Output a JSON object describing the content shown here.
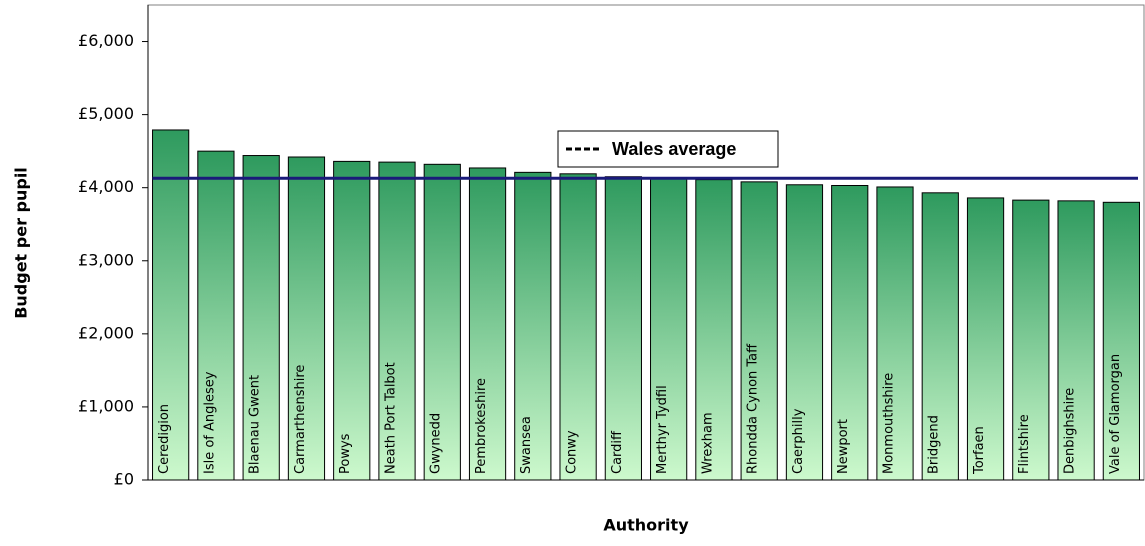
{
  "chart_data": {
    "type": "bar",
    "x_label": "Authority",
    "y_label": "Budget per pupil",
    "categories": [
      "Ceredigion",
      "Isle of Anglesey",
      "Blaenau Gwent",
      "Carmarthenshire",
      "Powys",
      "Neath Port Talbot",
      "Gwynedd",
      "Pembrokeshire",
      "Swansea",
      "Conwy",
      "Cardiff",
      "Merthyr Tydfil",
      "Wrexham",
      "Rhondda Cynon Taff",
      "Caerphilly",
      "Newport",
      "Monmouthshire",
      "Bridgend",
      "Torfaen",
      "Flintshire",
      "Denbighshire",
      "Vale of Glamorgan"
    ],
    "values": [
      4790,
      4500,
      4440,
      4420,
      4360,
      4350,
      4320,
      4270,
      4210,
      4190,
      4150,
      4130,
      4110,
      4080,
      4040,
      4030,
      4010,
      3930,
      3860,
      3830,
      3820,
      3800
    ],
    "color": "#2e9a5e",
    "average": {
      "name": "Wales average",
      "value": 4130,
      "color": "#1a1a7a"
    },
    "ylim": [
      0,
      6500
    ],
    "yticks": [
      {
        "value": 0,
        "label": "£0"
      },
      {
        "value": 1000,
        "label": "£1,000"
      },
      {
        "value": 2000,
        "label": "£2,000"
      },
      {
        "value": 3000,
        "label": "£3,000"
      },
      {
        "value": 4000,
        "label": "£4,000"
      },
      {
        "value": 5000,
        "label": "£5,000"
      },
      {
        "value": 6000,
        "label": "£6,000"
      }
    ],
    "grid": false
  }
}
